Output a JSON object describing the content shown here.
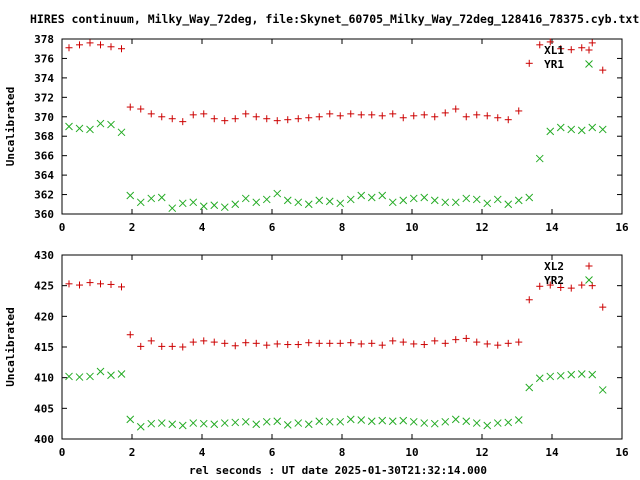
{
  "title": "HIRES continuum, Milky_Way_72deg, file:Skynet_60705_Milky_Way_72deg_128416_78375.cyb.txt",
  "x_axis_label": "rel seconds : UT date 2025-01-30T21:32:14.000",
  "colors": {
    "red": "#cc0000",
    "green": "#22aa22",
    "axis": "#000000"
  },
  "chart_data": [
    {
      "type": "scatter",
      "ylabel": "Uncalibrated",
      "xlim": [
        0,
        16
      ],
      "ylim": [
        360,
        378
      ],
      "xticks": [
        0,
        2,
        4,
        6,
        8,
        10,
        12,
        14,
        16
      ],
      "yticks": [
        360,
        362,
        364,
        366,
        368,
        370,
        372,
        374,
        376,
        378
      ],
      "legend_position": "top-right",
      "series": [
        {
          "name": "XL1",
          "color": "#cc0000",
          "marker": "plus",
          "points": [
            [
              0.2,
              377.1
            ],
            [
              0.5,
              377.4
            ],
            [
              0.8,
              377.6
            ],
            [
              1.1,
              377.4
            ],
            [
              1.4,
              377.2
            ],
            [
              1.7,
              377.0
            ],
            [
              1.95,
              371.0
            ],
            [
              2.25,
              370.8
            ],
            [
              2.55,
              370.3
            ],
            [
              2.85,
              370.0
            ],
            [
              3.15,
              369.8
            ],
            [
              3.45,
              369.5
            ],
            [
              3.75,
              370.2
            ],
            [
              4.05,
              370.3
            ],
            [
              4.35,
              369.8
            ],
            [
              4.65,
              369.6
            ],
            [
              4.95,
              369.8
            ],
            [
              5.25,
              370.3
            ],
            [
              5.55,
              370.0
            ],
            [
              5.85,
              369.8
            ],
            [
              6.15,
              369.6
            ],
            [
              6.45,
              369.7
            ],
            [
              6.75,
              369.8
            ],
            [
              7.05,
              369.9
            ],
            [
              7.35,
              370.0
            ],
            [
              7.65,
              370.3
            ],
            [
              7.95,
              370.1
            ],
            [
              8.25,
              370.3
            ],
            [
              8.55,
              370.2
            ],
            [
              8.85,
              370.2
            ],
            [
              9.15,
              370.1
            ],
            [
              9.45,
              370.3
            ],
            [
              9.75,
              369.9
            ],
            [
              10.05,
              370.1
            ],
            [
              10.35,
              370.2
            ],
            [
              10.65,
              370.0
            ],
            [
              10.95,
              370.4
            ],
            [
              11.25,
              370.8
            ],
            [
              11.55,
              370.0
            ],
            [
              11.85,
              370.2
            ],
            [
              12.15,
              370.1
            ],
            [
              12.45,
              369.9
            ],
            [
              12.75,
              369.7
            ],
            [
              13.05,
              370.6
            ],
            [
              13.35,
              375.5
            ],
            [
              13.65,
              377.4
            ],
            [
              13.95,
              377.7
            ],
            [
              14.25,
              377.0
            ],
            [
              14.55,
              376.9
            ],
            [
              14.85,
              377.1
            ],
            [
              15.15,
              377.6
            ],
            [
              15.45,
              374.8
            ]
          ]
        },
        {
          "name": "YR1",
          "color": "#22aa22",
          "marker": "x",
          "points": [
            [
              0.2,
              369.0
            ],
            [
              0.5,
              368.8
            ],
            [
              0.8,
              368.7
            ],
            [
              1.1,
              369.3
            ],
            [
              1.4,
              369.2
            ],
            [
              1.7,
              368.4
            ],
            [
              1.95,
              361.9
            ],
            [
              2.25,
              361.2
            ],
            [
              2.55,
              361.6
            ],
            [
              2.85,
              361.7
            ],
            [
              3.15,
              360.6
            ],
            [
              3.45,
              361.1
            ],
            [
              3.75,
              361.2
            ],
            [
              4.05,
              360.8
            ],
            [
              4.35,
              360.9
            ],
            [
              4.65,
              360.7
            ],
            [
              4.95,
              361.0
            ],
            [
              5.25,
              361.6
            ],
            [
              5.55,
              361.2
            ],
            [
              5.85,
              361.5
            ],
            [
              6.15,
              362.1
            ],
            [
              6.45,
              361.4
            ],
            [
              6.75,
              361.2
            ],
            [
              7.05,
              361.0
            ],
            [
              7.35,
              361.4
            ],
            [
              7.65,
              361.3
            ],
            [
              7.95,
              361.1
            ],
            [
              8.25,
              361.5
            ],
            [
              8.55,
              361.9
            ],
            [
              8.85,
              361.7
            ],
            [
              9.15,
              361.9
            ],
            [
              9.45,
              361.2
            ],
            [
              9.75,
              361.4
            ],
            [
              10.05,
              361.6
            ],
            [
              10.35,
              361.7
            ],
            [
              10.65,
              361.4
            ],
            [
              10.95,
              361.2
            ],
            [
              11.25,
              361.2
            ],
            [
              11.55,
              361.6
            ],
            [
              11.85,
              361.5
            ],
            [
              12.15,
              361.1
            ],
            [
              12.45,
              361.5
            ],
            [
              12.75,
              361.0
            ],
            [
              13.05,
              361.4
            ],
            [
              13.35,
              361.7
            ],
            [
              13.65,
              365.7
            ],
            [
              13.95,
              368.5
            ],
            [
              14.25,
              368.9
            ],
            [
              14.55,
              368.7
            ],
            [
              14.85,
              368.6
            ],
            [
              15.15,
              368.9
            ],
            [
              15.45,
              368.7
            ]
          ]
        }
      ]
    },
    {
      "type": "scatter",
      "ylabel": "Uncalibrated",
      "xlim": [
        0,
        16
      ],
      "ylim": [
        400,
        430
      ],
      "xticks": [
        0,
        2,
        4,
        6,
        8,
        10,
        12,
        14,
        16
      ],
      "yticks": [
        400,
        405,
        410,
        415,
        420,
        425,
        430
      ],
      "legend_position": "top-right",
      "series": [
        {
          "name": "XL2",
          "color": "#cc0000",
          "marker": "plus",
          "points": [
            [
              0.2,
              425.3
            ],
            [
              0.5,
              425.1
            ],
            [
              0.8,
              425.5
            ],
            [
              1.1,
              425.3
            ],
            [
              1.4,
              425.2
            ],
            [
              1.7,
              424.8
            ],
            [
              1.95,
              417.0
            ],
            [
              2.25,
              415.1
            ],
            [
              2.55,
              416.0
            ],
            [
              2.85,
              415.1
            ],
            [
              3.15,
              415.1
            ],
            [
              3.45,
              415.0
            ],
            [
              3.75,
              415.8
            ],
            [
              4.05,
              416.0
            ],
            [
              4.35,
              415.8
            ],
            [
              4.65,
              415.6
            ],
            [
              4.95,
              415.2
            ],
            [
              5.25,
              415.7
            ],
            [
              5.55,
              415.6
            ],
            [
              5.85,
              415.3
            ],
            [
              6.15,
              415.5
            ],
            [
              6.45,
              415.4
            ],
            [
              6.75,
              415.4
            ],
            [
              7.05,
              415.7
            ],
            [
              7.35,
              415.6
            ],
            [
              7.65,
              415.6
            ],
            [
              7.95,
              415.6
            ],
            [
              8.25,
              415.7
            ],
            [
              8.55,
              415.5
            ],
            [
              8.85,
              415.6
            ],
            [
              9.15,
              415.3
            ],
            [
              9.45,
              416.0
            ],
            [
              9.75,
              415.8
            ],
            [
              10.05,
              415.5
            ],
            [
              10.35,
              415.4
            ],
            [
              10.65,
              416.0
            ],
            [
              10.95,
              415.6
            ],
            [
              11.25,
              416.2
            ],
            [
              11.55,
              416.4
            ],
            [
              11.85,
              415.8
            ],
            [
              12.15,
              415.5
            ],
            [
              12.45,
              415.3
            ],
            [
              12.75,
              415.6
            ],
            [
              13.05,
              415.8
            ],
            [
              13.35,
              422.7
            ],
            [
              13.65,
              424.9
            ],
            [
              13.95,
              425.1
            ],
            [
              14.25,
              424.7
            ],
            [
              14.55,
              424.6
            ],
            [
              14.85,
              425.1
            ],
            [
              15.15,
              425.0
            ],
            [
              15.45,
              421.5
            ]
          ]
        },
        {
          "name": "YR2",
          "color": "#22aa22",
          "marker": "x",
          "points": [
            [
              0.2,
              410.2
            ],
            [
              0.5,
              410.1
            ],
            [
              0.8,
              410.2
            ],
            [
              1.1,
              411.0
            ],
            [
              1.4,
              410.4
            ],
            [
              1.7,
              410.6
            ],
            [
              1.95,
              403.2
            ],
            [
              2.25,
              402.0
            ],
            [
              2.55,
              402.5
            ],
            [
              2.85,
              402.6
            ],
            [
              3.15,
              402.4
            ],
            [
              3.45,
              402.2
            ],
            [
              3.75,
              402.6
            ],
            [
              4.05,
              402.5
            ],
            [
              4.35,
              402.4
            ],
            [
              4.65,
              402.6
            ],
            [
              4.95,
              402.7
            ],
            [
              5.25,
              402.8
            ],
            [
              5.55,
              402.4
            ],
            [
              5.85,
              402.8
            ],
            [
              6.15,
              402.9
            ],
            [
              6.45,
              402.3
            ],
            [
              6.75,
              402.6
            ],
            [
              7.05,
              402.4
            ],
            [
              7.35,
              402.9
            ],
            [
              7.65,
              402.8
            ],
            [
              7.95,
              402.8
            ],
            [
              8.25,
              403.2
            ],
            [
              8.55,
              403.1
            ],
            [
              8.85,
              402.9
            ],
            [
              9.15,
              403.0
            ],
            [
              9.45,
              402.9
            ],
            [
              9.75,
              403.0
            ],
            [
              10.05,
              402.8
            ],
            [
              10.35,
              402.6
            ],
            [
              10.65,
              402.5
            ],
            [
              10.95,
              402.8
            ],
            [
              11.25,
              403.2
            ],
            [
              11.55,
              402.9
            ],
            [
              11.85,
              402.6
            ],
            [
              12.15,
              402.2
            ],
            [
              12.45,
              402.6
            ],
            [
              12.75,
              402.7
            ],
            [
              13.05,
              403.1
            ],
            [
              13.35,
              408.4
            ],
            [
              13.65,
              409.9
            ],
            [
              13.95,
              410.2
            ],
            [
              14.25,
              410.3
            ],
            [
              14.55,
              410.5
            ],
            [
              14.85,
              410.6
            ],
            [
              15.15,
              410.5
            ],
            [
              15.45,
              408.0
            ]
          ]
        }
      ]
    }
  ]
}
